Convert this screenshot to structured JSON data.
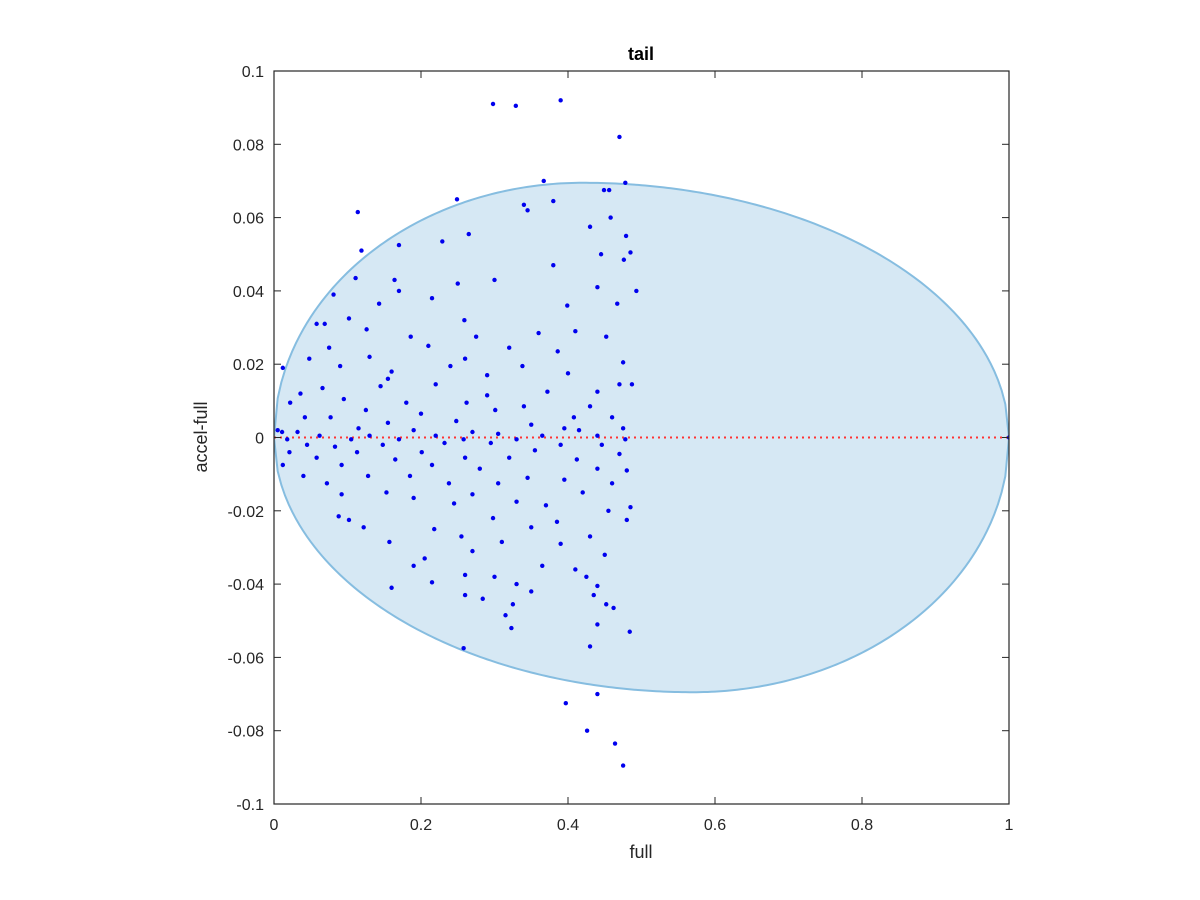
{
  "chart_data": {
    "type": "scatter",
    "title": "tail",
    "xlabel": "full",
    "ylabel": "accel-full",
    "xlim": [
      0,
      1
    ],
    "ylim": [
      -0.1,
      0.1
    ],
    "xticks": [
      0,
      0.2,
      0.4,
      0.6,
      0.8,
      1
    ],
    "xtick_labels": [
      "0",
      "0.2",
      "0.4",
      "0.6",
      "0.8",
      "1"
    ],
    "yticks": [
      -0.1,
      -0.08,
      -0.06,
      -0.04,
      -0.02,
      0,
      0.02,
      0.04,
      0.06,
      0.08,
      0.1
    ],
    "ytick_labels": [
      "-0.1",
      "-0.08",
      "-0.06",
      "-0.04",
      "-0.02",
      "0",
      "0.02",
      "0.04",
      "0.06",
      "0.08",
      "0.1"
    ],
    "grid": false,
    "colors": {
      "points": "#0000ee",
      "ellipse_fill": "#d6e8f4",
      "ellipse_stroke": "#86bde0",
      "reference_line": "#ff3333",
      "axes": "#262626"
    },
    "reference_line": {
      "y": 0,
      "style": "dotted"
    },
    "ellipse_region": {
      "x_range": [
        0,
        1
      ],
      "y_max": 0.0695,
      "y_min": -0.0695,
      "peak_x": 0.42,
      "trough_x": 0.57
    },
    "points": [
      [
        0.298,
        0.091
      ],
      [
        0.329,
        0.0905
      ],
      [
        0.39,
        0.092
      ],
      [
        0.47,
        0.082
      ],
      [
        0.367,
        0.07
      ],
      [
        0.478,
        0.0695
      ],
      [
        0.449,
        0.0675
      ],
      [
        0.456,
        0.0675
      ],
      [
        0.249,
        0.065
      ],
      [
        0.38,
        0.0645
      ],
      [
        0.34,
        0.0635
      ],
      [
        0.345,
        0.062
      ],
      [
        0.114,
        0.0615
      ],
      [
        0.458,
        0.06
      ],
      [
        0.43,
        0.0575
      ],
      [
        0.265,
        0.0555
      ],
      [
        0.479,
        0.055
      ],
      [
        0.229,
        0.0535
      ],
      [
        0.17,
        0.0525
      ],
      [
        0.119,
        0.051
      ],
      [
        0.445,
        0.05
      ],
      [
        0.485,
        0.0505
      ],
      [
        0.476,
        0.0485
      ],
      [
        0.38,
        0.047
      ],
      [
        0.111,
        0.0435
      ],
      [
        0.164,
        0.043
      ],
      [
        0.3,
        0.043
      ],
      [
        0.25,
        0.042
      ],
      [
        0.44,
        0.041
      ],
      [
        0.17,
        0.04
      ],
      [
        0.493,
        0.04
      ],
      [
        0.081,
        0.039
      ],
      [
        0.215,
        0.038
      ],
      [
        0.399,
        0.036
      ],
      [
        0.143,
        0.0365
      ],
      [
        0.467,
        0.0365
      ],
      [
        0.058,
        0.031
      ],
      [
        0.069,
        0.031
      ],
      [
        0.126,
        0.0295
      ],
      [
        0.259,
        0.032
      ],
      [
        0.102,
        0.0325
      ],
      [
        0.36,
        0.0285
      ],
      [
        0.41,
        0.029
      ],
      [
        0.186,
        0.0275
      ],
      [
        0.275,
        0.0275
      ],
      [
        0.452,
        0.0275
      ],
      [
        0.075,
        0.0245
      ],
      [
        0.21,
        0.025
      ],
      [
        0.32,
        0.0245
      ],
      [
        0.386,
        0.0235
      ],
      [
        0.13,
        0.022
      ],
      [
        0.048,
        0.0215
      ],
      [
        0.26,
        0.0215
      ],
      [
        0.24,
        0.0195
      ],
      [
        0.012,
        0.019
      ],
      [
        0.09,
        0.0195
      ],
      [
        0.338,
        0.0195
      ],
      [
        0.4,
        0.0175
      ],
      [
        0.475,
        0.0205
      ],
      [
        0.47,
        0.0145
      ],
      [
        0.16,
        0.018
      ],
      [
        0.155,
        0.016
      ],
      [
        0.29,
        0.017
      ],
      [
        0.036,
        0.012
      ],
      [
        0.066,
        0.0135
      ],
      [
        0.145,
        0.014
      ],
      [
        0.22,
        0.0145
      ],
      [
        0.29,
        0.0115
      ],
      [
        0.372,
        0.0125
      ],
      [
        0.44,
        0.0125
      ],
      [
        0.487,
        0.0145
      ],
      [
        0.095,
        0.0105
      ],
      [
        0.022,
        0.0095
      ],
      [
        0.18,
        0.0095
      ],
      [
        0.262,
        0.0095
      ],
      [
        0.43,
        0.0085
      ],
      [
        0.34,
        0.0085
      ],
      [
        0.125,
        0.0075
      ],
      [
        0.2,
        0.0065
      ],
      [
        0.301,
        0.0075
      ],
      [
        0.042,
        0.0055
      ],
      [
        0.077,
        0.0055
      ],
      [
        0.248,
        0.0045
      ],
      [
        0.408,
        0.0055
      ],
      [
        0.46,
        0.0055
      ],
      [
        0.155,
        0.004
      ],
      [
        0.35,
        0.0035
      ],
      [
        0.115,
        0.0025
      ],
      [
        0.011,
        0.0015
      ],
      [
        0.005,
        0.002
      ],
      [
        0.032,
        0.0015
      ],
      [
        0.19,
        0.002
      ],
      [
        0.27,
        0.0015
      ],
      [
        0.395,
        0.0025
      ],
      [
        0.415,
        0.002
      ],
      [
        0.475,
        0.0025
      ],
      [
        0.062,
        0.0005
      ],
      [
        0.13,
        0.0005
      ],
      [
        0.22,
        0.0005
      ],
      [
        0.305,
        0.001
      ],
      [
        0.365,
        0.0005
      ],
      [
        0.44,
        0.0005
      ],
      [
        0.018,
        -0.0005
      ],
      [
        0.105,
        -0.0005
      ],
      [
        0.17,
        -0.0005
      ],
      [
        0.258,
        -0.0005
      ],
      [
        0.33,
        -0.0005
      ],
      [
        0.478,
        -0.0005
      ],
      [
        0.045,
        -0.002
      ],
      [
        0.083,
        -0.0025
      ],
      [
        0.148,
        -0.002
      ],
      [
        0.232,
        -0.0015
      ],
      [
        0.295,
        -0.0015
      ],
      [
        0.39,
        -0.002
      ],
      [
        0.446,
        -0.002
      ],
      [
        0.021,
        -0.004
      ],
      [
        0.113,
        -0.004
      ],
      [
        0.201,
        -0.004
      ],
      [
        0.355,
        -0.0035
      ],
      [
        0.47,
        -0.0045
      ],
      [
        0.058,
        -0.0055
      ],
      [
        0.165,
        -0.006
      ],
      [
        0.26,
        -0.0055
      ],
      [
        0.32,
        -0.0055
      ],
      [
        0.412,
        -0.006
      ],
      [
        0.012,
        -0.0075
      ],
      [
        0.092,
        -0.0075
      ],
      [
        0.215,
        -0.0075
      ],
      [
        0.28,
        -0.0085
      ],
      [
        0.44,
        -0.0085
      ],
      [
        0.48,
        -0.009
      ],
      [
        0.04,
        -0.0105
      ],
      [
        0.128,
        -0.0105
      ],
      [
        0.185,
        -0.0105
      ],
      [
        0.345,
        -0.011
      ],
      [
        0.395,
        -0.0115
      ],
      [
        0.072,
        -0.0125
      ],
      [
        0.238,
        -0.0125
      ],
      [
        0.305,
        -0.0125
      ],
      [
        0.46,
        -0.0125
      ],
      [
        0.153,
        -0.015
      ],
      [
        0.092,
        -0.0155
      ],
      [
        0.27,
        -0.0155
      ],
      [
        0.42,
        -0.015
      ],
      [
        0.19,
        -0.0165
      ],
      [
        0.33,
        -0.0175
      ],
      [
        0.245,
        -0.018
      ],
      [
        0.37,
        -0.0185
      ],
      [
        0.485,
        -0.019
      ],
      [
        0.455,
        -0.02
      ],
      [
        0.088,
        -0.0215
      ],
      [
        0.298,
        -0.022
      ],
      [
        0.102,
        -0.0225
      ],
      [
        0.385,
        -0.023
      ],
      [
        0.48,
        -0.0225
      ],
      [
        0.122,
        -0.0245
      ],
      [
        0.218,
        -0.025
      ],
      [
        0.35,
        -0.0245
      ],
      [
        0.255,
        -0.027
      ],
      [
        0.43,
        -0.027
      ],
      [
        0.157,
        -0.0285
      ],
      [
        0.31,
        -0.0285
      ],
      [
        0.39,
        -0.029
      ],
      [
        0.27,
        -0.031
      ],
      [
        0.205,
        -0.033
      ],
      [
        0.45,
        -0.032
      ],
      [
        0.19,
        -0.035
      ],
      [
        0.365,
        -0.035
      ],
      [
        0.41,
        -0.036
      ],
      [
        0.26,
        -0.0375
      ],
      [
        0.3,
        -0.038
      ],
      [
        0.425,
        -0.038
      ],
      [
        0.215,
        -0.0395
      ],
      [
        0.16,
        -0.041
      ],
      [
        0.33,
        -0.04
      ],
      [
        0.44,
        -0.0405
      ],
      [
        0.26,
        -0.043
      ],
      [
        0.284,
        -0.044
      ],
      [
        0.35,
        -0.042
      ],
      [
        0.435,
        -0.043
      ],
      [
        0.325,
        -0.0455
      ],
      [
        0.452,
        -0.0455
      ],
      [
        0.462,
        -0.0465
      ],
      [
        0.315,
        -0.0485
      ],
      [
        0.44,
        -0.051
      ],
      [
        0.323,
        -0.052
      ],
      [
        0.484,
        -0.053
      ],
      [
        0.43,
        -0.057
      ],
      [
        0.258,
        -0.0575
      ],
      [
        0.44,
        -0.07
      ],
      [
        0.397,
        -0.0725
      ],
      [
        0.426,
        -0.08
      ],
      [
        0.464,
        -0.0835
      ],
      [
        0.475,
        -0.0895
      ],
      [
        1.0,
        0.0
      ]
    ]
  }
}
